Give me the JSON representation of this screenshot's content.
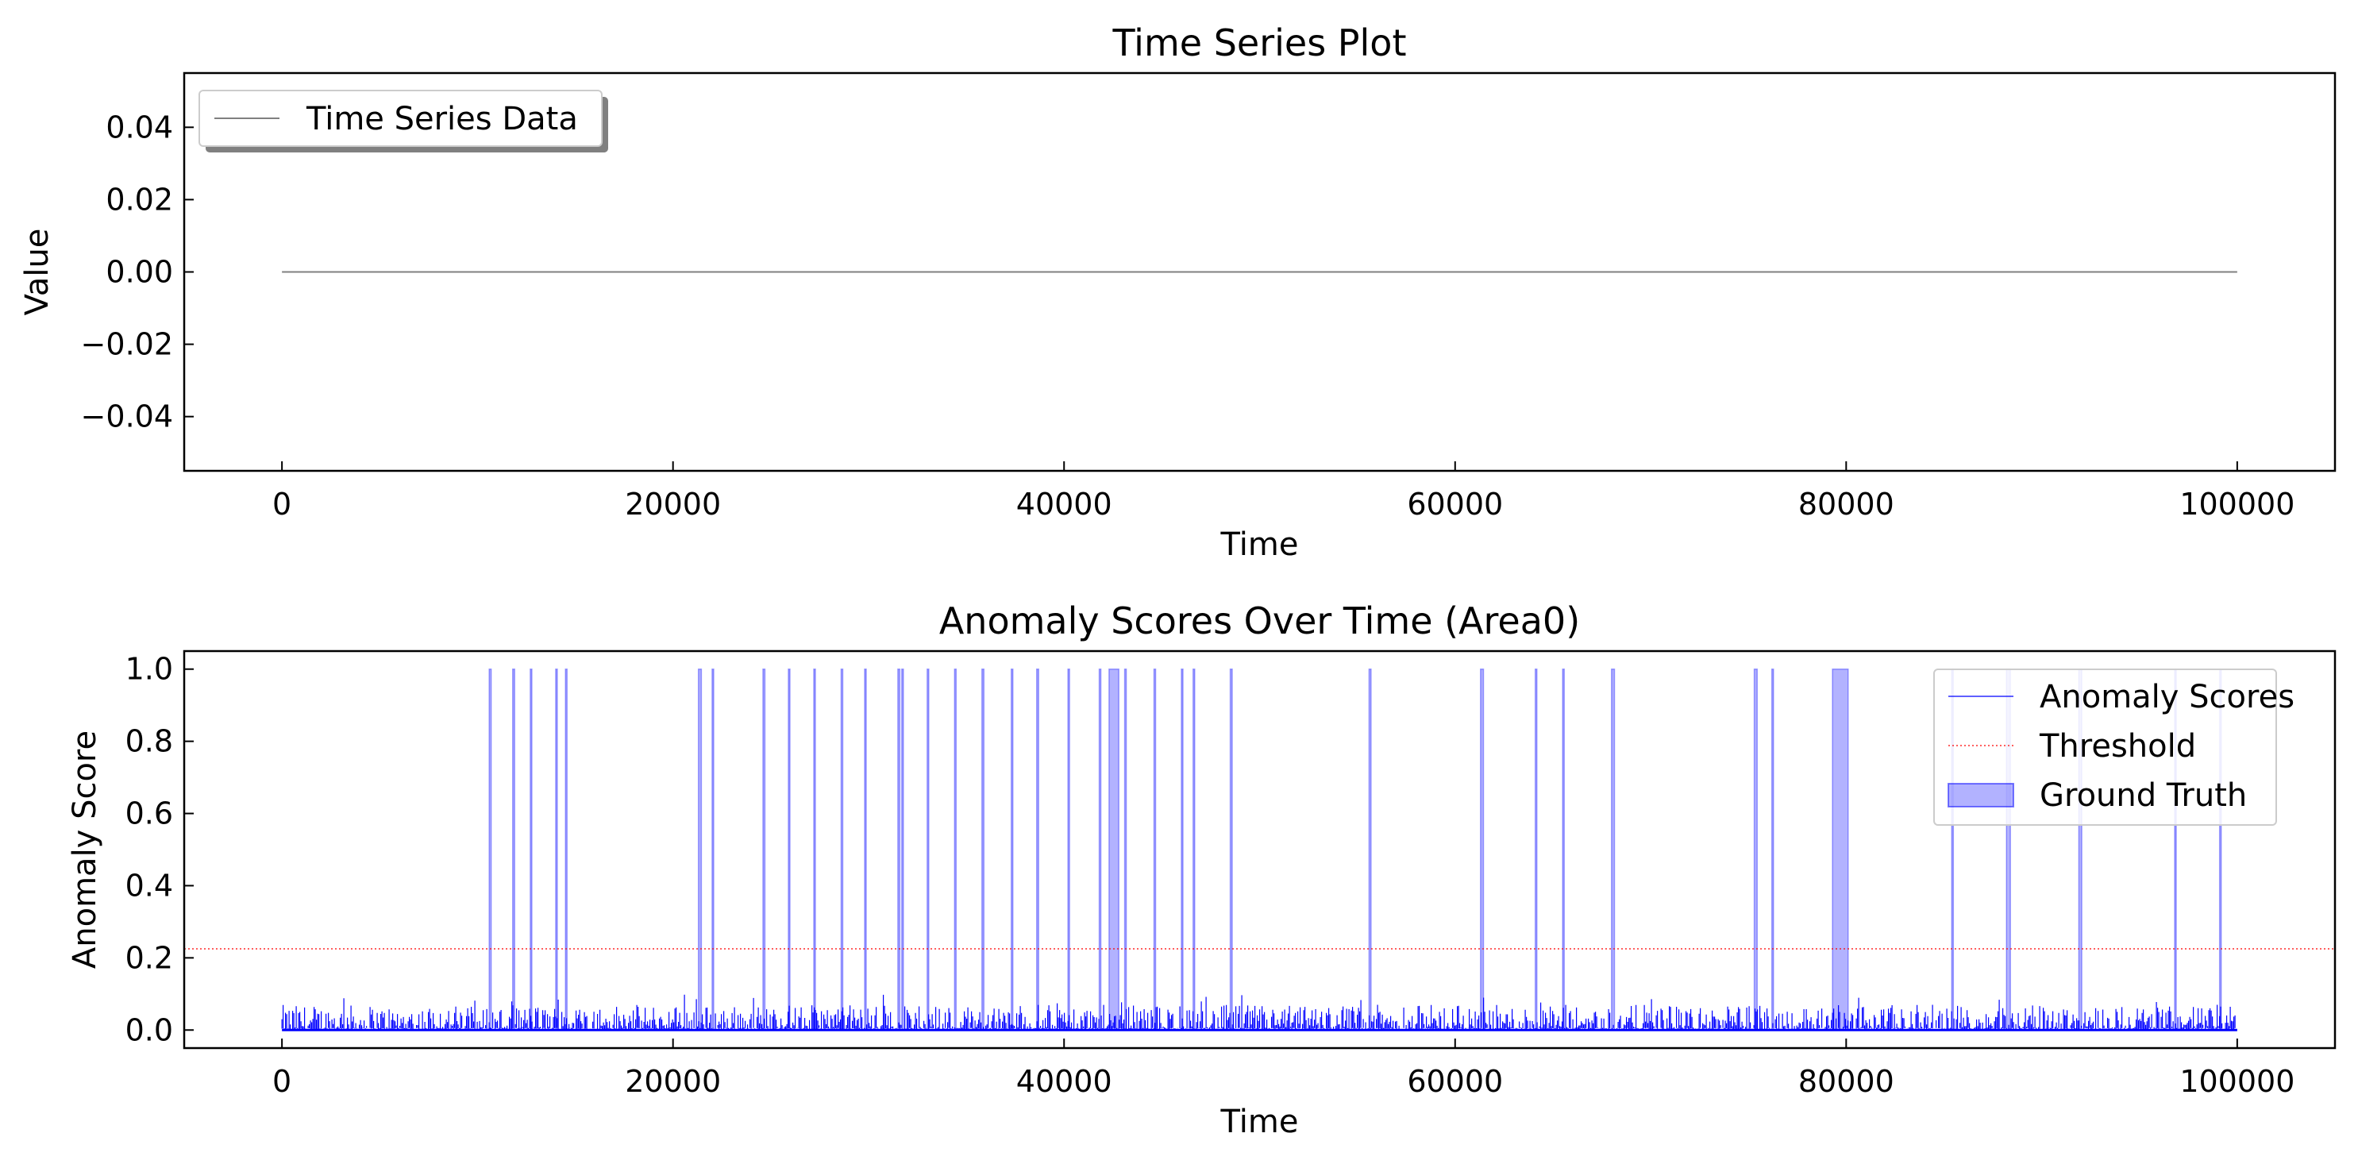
{
  "chart_data": [
    {
      "type": "line",
      "title": "Time Series Plot",
      "xlabel": "Time",
      "ylabel": "Value",
      "xlim": [
        -5000,
        105000
      ],
      "ylim": [
        -0.055,
        0.055
      ],
      "xticks": [
        0,
        20000,
        40000,
        60000,
        80000,
        100000
      ],
      "yticks": [
        -0.04,
        -0.02,
        0.0,
        0.02,
        0.04
      ],
      "grid": false,
      "legend_position": "top-left",
      "series": [
        {
          "name": "Time Series Data",
          "color": "#808080",
          "x": [
            0,
            100000
          ],
          "y": [
            0.0,
            0.0
          ]
        }
      ]
    },
    {
      "type": "line",
      "title": "Anomaly Scores Over Time (Area0)",
      "xlabel": "Time",
      "ylabel": "Anomaly Score",
      "xlim": [
        -5000,
        105000
      ],
      "ylim": [
        -0.05,
        1.05
      ],
      "xticks": [
        0,
        20000,
        40000,
        60000,
        80000,
        100000
      ],
      "yticks": [
        0.0,
        0.2,
        0.4,
        0.6,
        0.8,
        1.0
      ],
      "grid": false,
      "legend_position": "top-right",
      "series": [
        {
          "name": "Anomaly Scores",
          "color": "#0000ff",
          "x_range": [
            0,
            100000
          ],
          "typical_max": 0.07,
          "peak_max": 0.1
        },
        {
          "name": "Threshold",
          "color": "#ff0000",
          "style": "dotted",
          "y": 0.225
        }
      ],
      "ground_truth": {
        "name": "Ground Truth",
        "color": "#0000ff",
        "ymax": 1.0,
        "intervals": [
          [
            10600,
            10700
          ],
          [
            11800,
            11900
          ],
          [
            12700,
            12780
          ],
          [
            14000,
            14080
          ],
          [
            14500,
            14580
          ],
          [
            21300,
            21450
          ],
          [
            22000,
            22080
          ],
          [
            24600,
            24700
          ],
          [
            25900,
            25980
          ],
          [
            27200,
            27280
          ],
          [
            28600,
            28680
          ],
          [
            29800,
            29880
          ],
          [
            31500,
            31600
          ],
          [
            31700,
            31780
          ],
          [
            33000,
            33080
          ],
          [
            34400,
            34480
          ],
          [
            35800,
            35900
          ],
          [
            37300,
            37380
          ],
          [
            38600,
            38700
          ],
          [
            40200,
            40280
          ],
          [
            41800,
            41880
          ],
          [
            42300,
            42800
          ],
          [
            43100,
            43180
          ],
          [
            44600,
            44680
          ],
          [
            46000,
            46080
          ],
          [
            46600,
            46680
          ],
          [
            48500,
            48600
          ],
          [
            55600,
            55700
          ],
          [
            61300,
            61450
          ],
          [
            64100,
            64180
          ],
          [
            65500,
            65580
          ],
          [
            68000,
            68150
          ],
          [
            75300,
            75450
          ],
          [
            76200,
            76280
          ],
          [
            79300,
            80100
          ],
          [
            85400,
            85480
          ],
          [
            88200,
            88400
          ],
          [
            91900,
            92050
          ],
          [
            96800,
            96880
          ],
          [
            99100,
            99180
          ]
        ]
      }
    }
  ]
}
